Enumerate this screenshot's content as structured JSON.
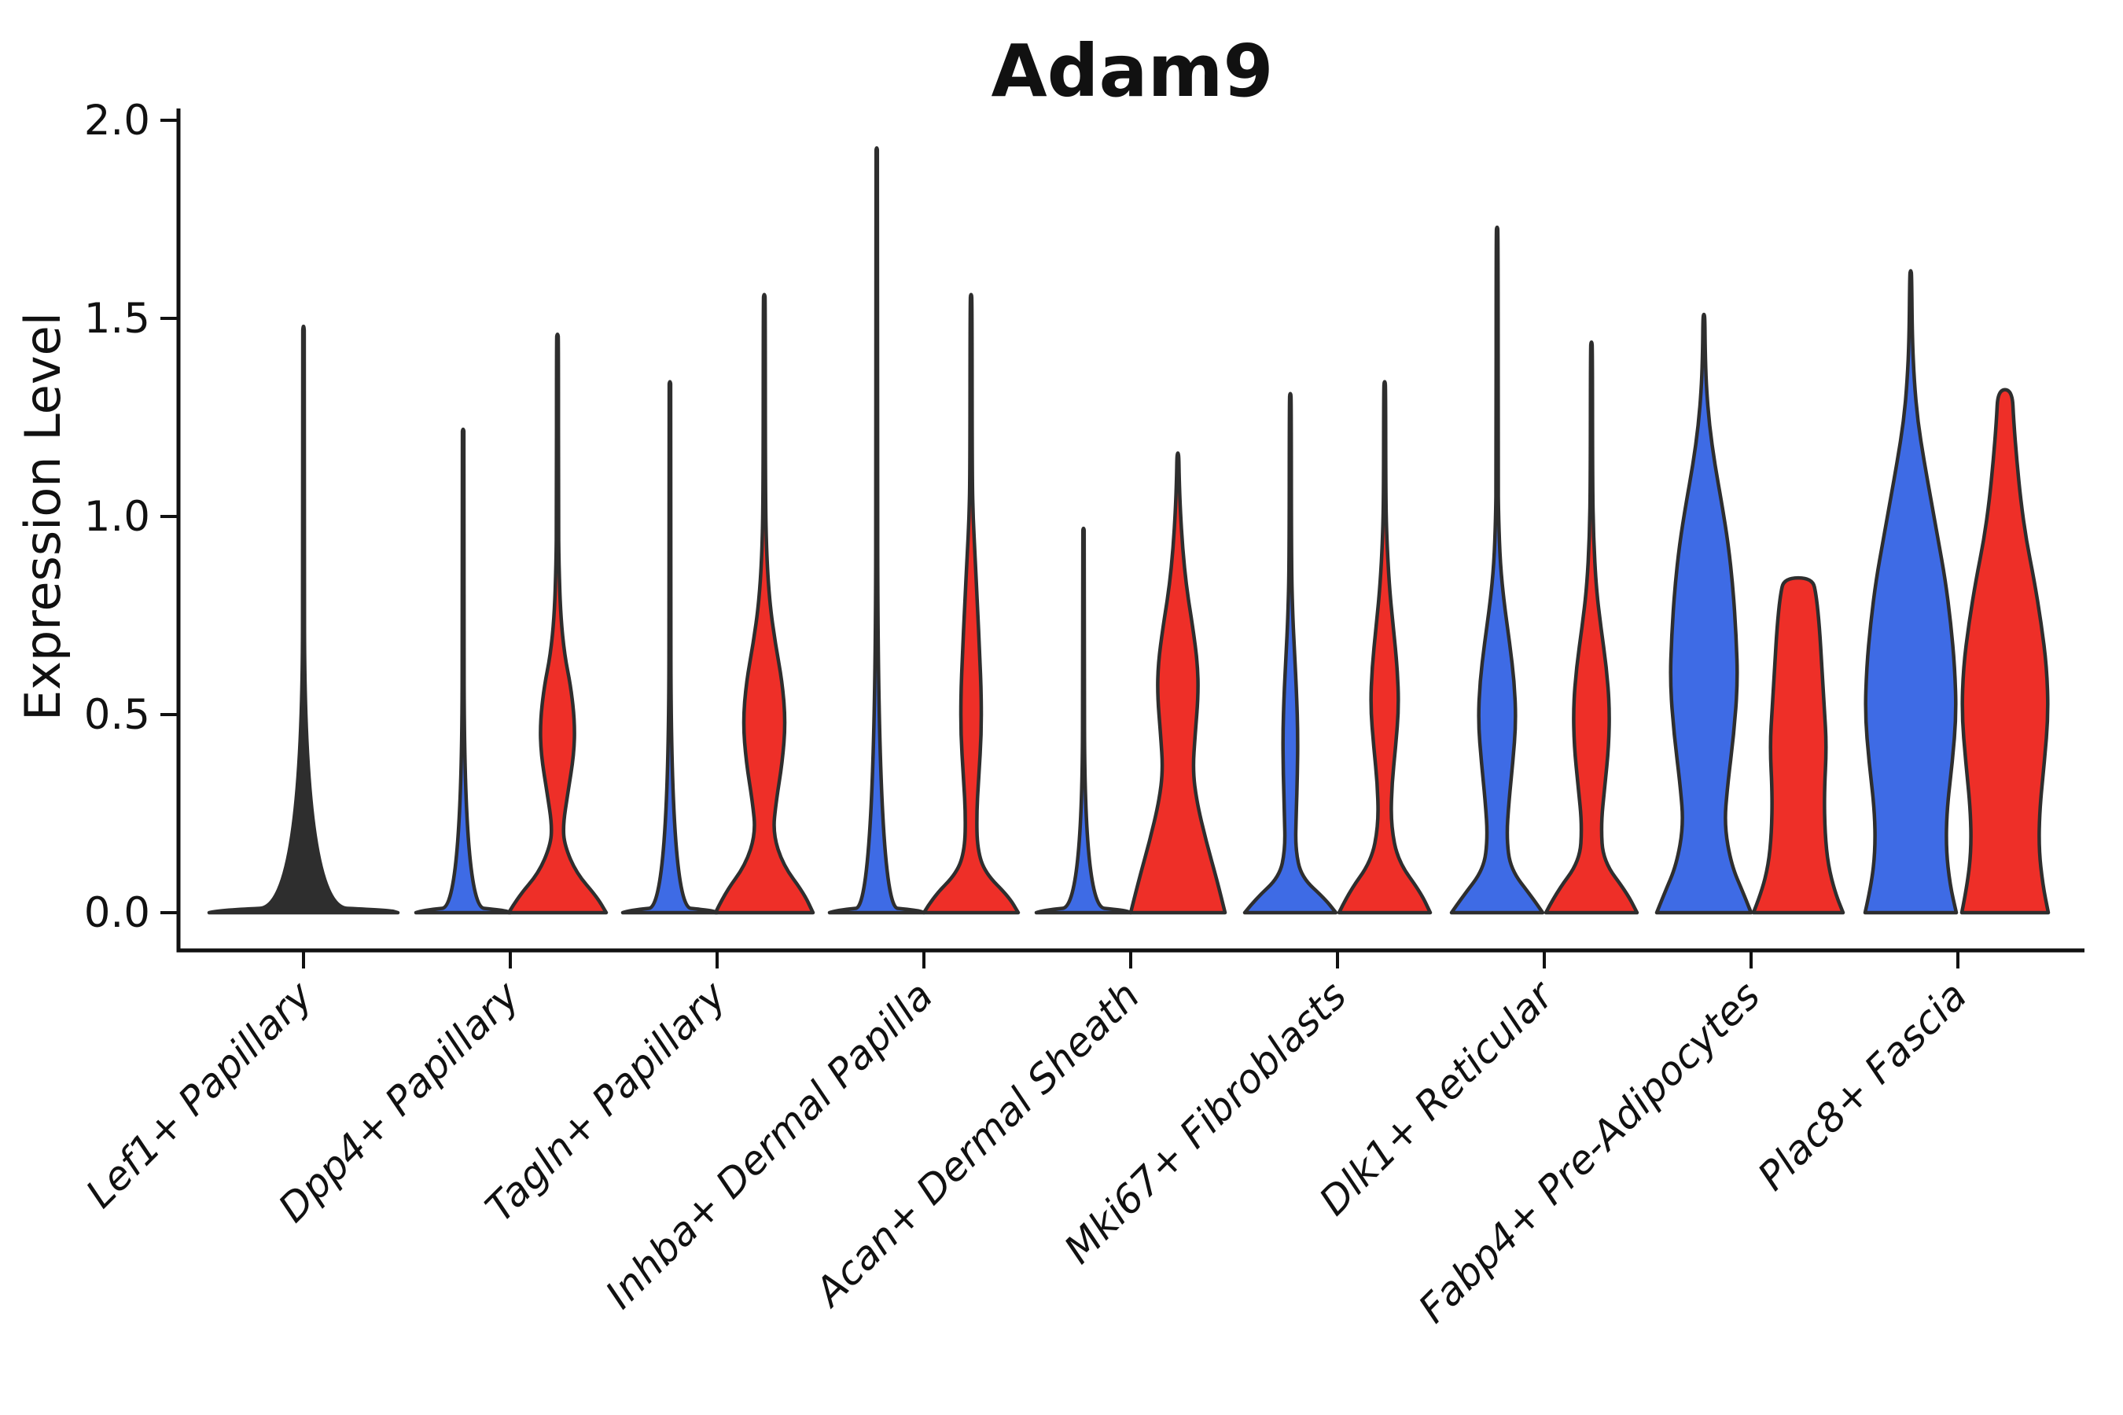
{
  "title": "Adam9",
  "axes": {
    "ylabel": "Expression Level",
    "ytick_labels": [
      "2.0",
      "1.5",
      "1.0",
      "0.5",
      "0.0"
    ],
    "ytick_values": [
      2.0,
      1.5,
      1.0,
      0.5,
      0.0
    ]
  },
  "colors": {
    "blue": "#3E6BE5",
    "red": "#EE2F28",
    "neutral": "#2E2E2E",
    "outline": "#2E2E2E",
    "axis": "#111111",
    "background": "#ffffff"
  },
  "chart_data": {
    "type": "violin",
    "title": "Adam9",
    "xlabel": "",
    "ylabel": "Expression Level",
    "ylim": [
      0,
      2.0
    ],
    "yticks": [
      0.0,
      0.5,
      1.0,
      1.5,
      2.0
    ],
    "grid": false,
    "legend": "none",
    "split_groups": [
      "blue",
      "red"
    ],
    "categories": [
      "Lef1+ Papillary",
      "Dpp4+ Papillary",
      "Tagln+ Papillary",
      "Inhba+ Dermal Papilla",
      "Acan+ Dermal Sheath",
      "Mki67+ Fibroblasts",
      "Dlk1+ Reticular",
      "Fabp4+ Pre-Adipocytes",
      "Plac8+ Fascia"
    ],
    "violins": [
      {
        "category_index": 0,
        "category": "Lef1+ Papillary",
        "group": "all",
        "offset": 0,
        "max_expression": 1.48,
        "flat_top": false,
        "profile": [
          [
            0,
            120
          ],
          [
            0.006,
            110
          ],
          [
            0.016,
            1.2
          ],
          [
            1.46,
            1.2
          ],
          [
            1.48,
            0.5
          ]
        ]
      },
      {
        "category_index": 1,
        "category": "Dpp4+ Papillary",
        "group": "blue",
        "offset": -60,
        "max_expression": 1.22,
        "flat_top": false,
        "profile": [
          [
            0,
            60
          ],
          [
            0.006,
            52
          ],
          [
            0.016,
            1.2
          ],
          [
            1.21,
            1.2
          ],
          [
            1.22,
            0.5
          ]
        ]
      },
      {
        "category_index": 1,
        "category": "Dpp4+ Papillary",
        "group": "red",
        "offset": 60,
        "max_expression": 1.46,
        "flat_top": false,
        "profile": [
          [
            0,
            62
          ],
          [
            0.04,
            50
          ],
          [
            0.1,
            24
          ],
          [
            0.17,
            9
          ],
          [
            0.22,
            7
          ],
          [
            0.3,
            13
          ],
          [
            0.4,
            21
          ],
          [
            0.48,
            22
          ],
          [
            0.57,
            17
          ],
          [
            0.65,
            9
          ],
          [
            0.75,
            4
          ],
          [
            0.88,
            1.8
          ],
          [
            1.0,
            1.2
          ],
          [
            1.45,
            1.2
          ],
          [
            1.46,
            0.5
          ]
        ]
      },
      {
        "category_index": 2,
        "category": "Tagln+ Papillary",
        "group": "blue",
        "offset": -60,
        "max_expression": 1.34,
        "flat_top": false,
        "profile": [
          [
            0,
            60
          ],
          [
            0.006,
            52
          ],
          [
            0.016,
            1.2
          ],
          [
            1.33,
            1.2
          ],
          [
            1.34,
            0.5
          ]
        ]
      },
      {
        "category_index": 2,
        "category": "Tagln+ Papillary",
        "group": "red",
        "offset": 60,
        "max_expression": 1.56,
        "flat_top": false,
        "profile": [
          [
            0,
            62
          ],
          [
            0.05,
            50
          ],
          [
            0.12,
            24
          ],
          [
            0.2,
            11
          ],
          [
            0.28,
            15
          ],
          [
            0.38,
            23
          ],
          [
            0.48,
            27
          ],
          [
            0.58,
            23
          ],
          [
            0.68,
            14
          ],
          [
            0.78,
            7
          ],
          [
            0.9,
            3
          ],
          [
            1.05,
            1.4
          ],
          [
            1.55,
            1.2
          ],
          [
            1.56,
            0.5
          ]
        ]
      },
      {
        "category_index": 3,
        "category": "Inhba+ Dermal Papilla",
        "group": "blue",
        "offset": -60,
        "max_expression": 1.93,
        "flat_top": false,
        "profile": [
          [
            0,
            60
          ],
          [
            0.006,
            52
          ],
          [
            0.016,
            1.2
          ],
          [
            1.92,
            1.2
          ],
          [
            1.93,
            0.5
          ]
        ]
      },
      {
        "category_index": 3,
        "category": "Inhba+ Dermal Papilla",
        "group": "red",
        "offset": 60,
        "max_expression": 1.56,
        "flat_top": false,
        "profile": [
          [
            0,
            60
          ],
          [
            0.04,
            48
          ],
          [
            0.1,
            18
          ],
          [
            0.16,
            8
          ],
          [
            0.25,
            7
          ],
          [
            0.35,
            10
          ],
          [
            0.45,
            13
          ],
          [
            0.55,
            13
          ],
          [
            0.65,
            11
          ],
          [
            0.78,
            8
          ],
          [
            0.9,
            5
          ],
          [
            1.0,
            2.5
          ],
          [
            1.1,
            1.4
          ],
          [
            1.55,
            1.2
          ],
          [
            1.56,
            0.5
          ]
        ]
      },
      {
        "category_index": 4,
        "category": "Acan+ Dermal Sheath",
        "group": "blue",
        "offset": -60,
        "max_expression": 0.97,
        "flat_top": false,
        "profile": [
          [
            0,
            60
          ],
          [
            0.006,
            52
          ],
          [
            0.016,
            1.2
          ],
          [
            0.96,
            1.2
          ],
          [
            0.97,
            0.5
          ]
        ]
      },
      {
        "category_index": 4,
        "category": "Acan+ Dermal Sheath",
        "group": "red",
        "offset": 60,
        "max_expression": 1.16,
        "flat_top": false,
        "profile": [
          [
            0,
            60
          ],
          [
            0.08,
            50
          ],
          [
            0.18,
            36
          ],
          [
            0.28,
            24
          ],
          [
            0.36,
            19
          ],
          [
            0.45,
            22
          ],
          [
            0.55,
            26
          ],
          [
            0.63,
            25
          ],
          [
            0.72,
            19
          ],
          [
            0.82,
            11
          ],
          [
            0.92,
            6
          ],
          [
            1.02,
            3
          ],
          [
            1.1,
            1.6
          ],
          [
            1.15,
            1.2
          ],
          [
            1.16,
            0.5
          ]
        ]
      },
      {
        "category_index": 5,
        "category": "Mki67+ Fibroblasts",
        "group": "blue",
        "offset": -60,
        "max_expression": 1.31,
        "flat_top": false,
        "profile": [
          [
            0,
            58
          ],
          [
            0.035,
            44
          ],
          [
            0.09,
            14
          ],
          [
            0.16,
            6.5
          ],
          [
            0.25,
            7.5
          ],
          [
            0.35,
            9
          ],
          [
            0.45,
            9.5
          ],
          [
            0.55,
            8
          ],
          [
            0.65,
            5.5
          ],
          [
            0.75,
            3
          ],
          [
            0.88,
            1.4
          ],
          [
            1.3,
            1.2
          ],
          [
            1.31,
            0.5
          ]
        ]
      },
      {
        "category_index": 5,
        "category": "Mki67+ Fibroblasts",
        "group": "red",
        "offset": 60,
        "max_expression": 1.34,
        "flat_top": false,
        "profile": [
          [
            0,
            58
          ],
          [
            0.05,
            46
          ],
          [
            0.13,
            17
          ],
          [
            0.22,
            8
          ],
          [
            0.32,
            9
          ],
          [
            0.42,
            14
          ],
          [
            0.52,
            18
          ],
          [
            0.62,
            16
          ],
          [
            0.72,
            11
          ],
          [
            0.82,
            6
          ],
          [
            0.95,
            2.5
          ],
          [
            1.05,
            1.4
          ],
          [
            1.33,
            1.2
          ],
          [
            1.34,
            0.5
          ]
        ]
      },
      {
        "category_index": 6,
        "category": "Dlk1+ Reticular",
        "group": "blue",
        "offset": -60,
        "max_expression": 1.73,
        "flat_top": false,
        "profile": [
          [
            0,
            58
          ],
          [
            0.04,
            44
          ],
          [
            0.11,
            17
          ],
          [
            0.19,
            12
          ],
          [
            0.28,
            15
          ],
          [
            0.38,
            20
          ],
          [
            0.48,
            24
          ],
          [
            0.58,
            22
          ],
          [
            0.68,
            16
          ],
          [
            0.78,
            9
          ],
          [
            0.88,
            4
          ],
          [
            1.0,
            1.8
          ],
          [
            1.1,
            1.3
          ],
          [
            1.72,
            1.2
          ],
          [
            1.73,
            0.5
          ]
        ]
      },
      {
        "category_index": 6,
        "category": "Dlk1+ Reticular",
        "group": "red",
        "offset": 60,
        "max_expression": 1.44,
        "flat_top": false,
        "profile": [
          [
            0,
            58
          ],
          [
            0.05,
            45
          ],
          [
            0.13,
            15
          ],
          [
            0.22,
            12
          ],
          [
            0.32,
            17
          ],
          [
            0.42,
            22
          ],
          [
            0.52,
            23
          ],
          [
            0.62,
            19
          ],
          [
            0.72,
            12
          ],
          [
            0.82,
            6
          ],
          [
            0.95,
            2.5
          ],
          [
            1.08,
            1.4
          ],
          [
            1.43,
            1.2
          ],
          [
            1.44,
            0.5
          ]
        ]
      },
      {
        "category_index": 7,
        "category": "Fabp4+ Pre-Adipocytes",
        "group": "blue",
        "offset": -60,
        "max_expression": 1.51,
        "flat_top": false,
        "profile": [
          [
            0,
            60
          ],
          [
            0.05,
            50
          ],
          [
            0.12,
            35
          ],
          [
            0.22,
            26
          ],
          [
            0.32,
            30
          ],
          [
            0.45,
            38
          ],
          [
            0.58,
            43
          ],
          [
            0.7,
            41
          ],
          [
            0.82,
            37
          ],
          [
            0.93,
            31
          ],
          [
            1.03,
            23
          ],
          [
            1.13,
            14
          ],
          [
            1.23,
            7
          ],
          [
            1.33,
            3
          ],
          [
            1.42,
            1.6
          ],
          [
            1.5,
            1.2
          ],
          [
            1.51,
            0.5
          ]
        ]
      },
      {
        "category_index": 7,
        "category": "Fabp4+ Pre-Adipocytes",
        "group": "red",
        "offset": 60,
        "max_expression": 0.845,
        "flat_top": true,
        "profile": [
          [
            0,
            57
          ],
          [
            0.05,
            47
          ],
          [
            0.12,
            38
          ],
          [
            0.2,
            34
          ],
          [
            0.3,
            33
          ],
          [
            0.42,
            36
          ],
          [
            0.52,
            33
          ],
          [
            0.62,
            30
          ],
          [
            0.72,
            27
          ],
          [
            0.8,
            23
          ],
          [
            0.845,
            18
          ]
        ]
      },
      {
        "category_index": 8,
        "category": "Plac8+ Fascia",
        "group": "blue",
        "offset": -60,
        "max_expression": 1.62,
        "flat_top": false,
        "profile": [
          [
            0,
            58
          ],
          [
            0.07,
            50
          ],
          [
            0.16,
            45
          ],
          [
            0.26,
            46
          ],
          [
            0.38,
            53
          ],
          [
            0.5,
            58
          ],
          [
            0.62,
            56
          ],
          [
            0.73,
            51
          ],
          [
            0.84,
            44
          ],
          [
            0.94,
            35
          ],
          [
            1.04,
            26
          ],
          [
            1.14,
            17
          ],
          [
            1.24,
            9
          ],
          [
            1.34,
            4.5
          ],
          [
            1.45,
            2
          ],
          [
            1.61,
            1.2
          ],
          [
            1.62,
            0.4
          ]
        ]
      },
      {
        "category_index": 8,
        "category": "Plac8+ Fascia",
        "group": "red",
        "offset": 60,
        "max_expression": 1.32,
        "flat_top": true,
        "profile": [
          [
            0,
            55
          ],
          [
            0.07,
            48
          ],
          [
            0.16,
            43
          ],
          [
            0.26,
            44
          ],
          [
            0.38,
            50
          ],
          [
            0.5,
            55
          ],
          [
            0.62,
            53
          ],
          [
            0.73,
            46
          ],
          [
            0.84,
            37
          ],
          [
            0.94,
            27
          ],
          [
            1.04,
            20
          ],
          [
            1.14,
            15
          ],
          [
            1.24,
            11
          ],
          [
            1.32,
            9
          ]
        ]
      }
    ]
  }
}
